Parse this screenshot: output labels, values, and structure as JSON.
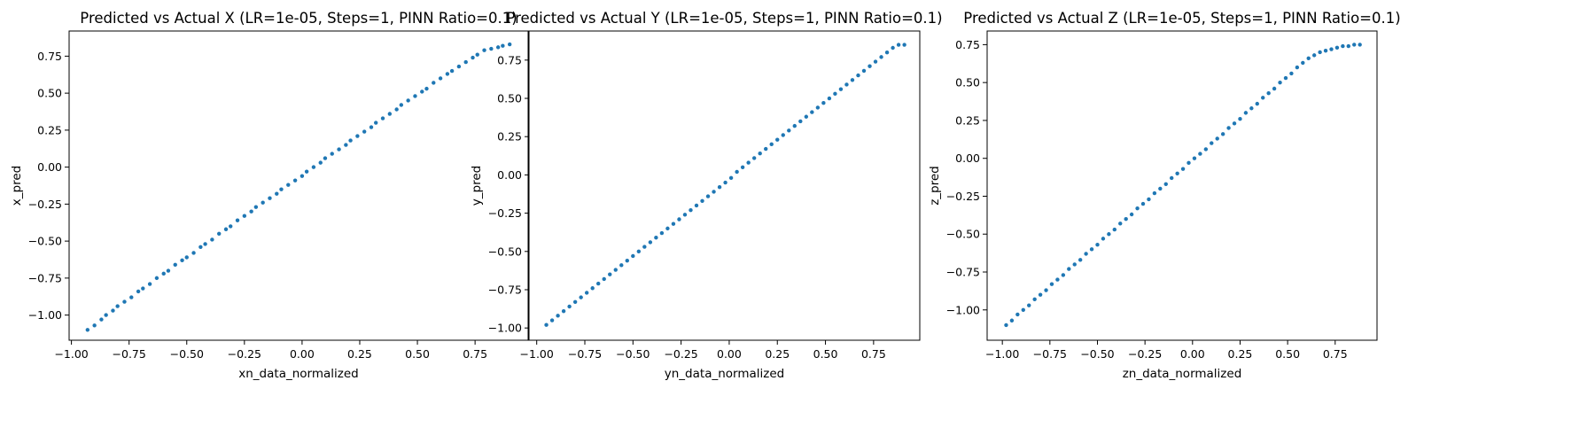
{
  "colors": {
    "points": "#1f77b4",
    "frame": "#000000",
    "background": "#ffffff"
  },
  "chart_data": [
    {
      "type": "scatter",
      "title": "Predicted vs Actual X (LR=1e-05, Steps=1, PINN Ratio=0.1)",
      "xlabel": "xn_data_normalized",
      "ylabel": "x_pred",
      "xlim": [
        -1.01,
        0.98
      ],
      "ylim": [
        -1.17,
        0.92
      ],
      "xticks": [
        -1.0,
        -0.75,
        -0.5,
        -0.25,
        0.0,
        0.25,
        0.5,
        0.75
      ],
      "xtick_labels": [
        "−1.00",
        "−0.75",
        "−0.50",
        "−0.25",
        "0.00",
        "0.25",
        "0.50",
        "0.75"
      ],
      "yticks": [
        -1.0,
        -0.75,
        -0.5,
        -0.25,
        0.0,
        0.25,
        0.5,
        0.75
      ],
      "ytick_labels": [
        "−1.00",
        "−0.75",
        "−0.50",
        "−0.25",
        "0.00",
        "0.25",
        "0.50",
        "0.75"
      ],
      "grid": false,
      "x": [
        -0.93,
        -0.9,
        -0.87,
        -0.85,
        -0.82,
        -0.8,
        -0.77,
        -0.74,
        -0.71,
        -0.69,
        -0.66,
        -0.63,
        -0.6,
        -0.58,
        -0.55,
        -0.52,
        -0.5,
        -0.47,
        -0.44,
        -0.42,
        -0.39,
        -0.36,
        -0.33,
        -0.31,
        -0.28,
        -0.25,
        -0.22,
        -0.2,
        -0.17,
        -0.14,
        -0.11,
        -0.09,
        -0.06,
        -0.03,
        0.0,
        0.02,
        0.05,
        0.08,
        0.1,
        0.13,
        0.16,
        0.19,
        0.21,
        0.24,
        0.27,
        0.3,
        0.32,
        0.35,
        0.38,
        0.41,
        0.43,
        0.46,
        0.49,
        0.52,
        0.54,
        0.57,
        0.6,
        0.63,
        0.65,
        0.68,
        0.71,
        0.74,
        0.76,
        0.79,
        0.82,
        0.85,
        0.87,
        0.9
      ],
      "y": [
        -1.1,
        -1.07,
        -1.03,
        -1.0,
        -0.97,
        -0.94,
        -0.91,
        -0.88,
        -0.84,
        -0.82,
        -0.79,
        -0.75,
        -0.72,
        -0.7,
        -0.66,
        -0.63,
        -0.61,
        -0.58,
        -0.54,
        -0.52,
        -0.49,
        -0.45,
        -0.42,
        -0.4,
        -0.36,
        -0.33,
        -0.3,
        -0.27,
        -0.24,
        -0.21,
        -0.18,
        -0.15,
        -0.12,
        -0.09,
        -0.06,
        -0.03,
        0.0,
        0.03,
        0.06,
        0.09,
        0.12,
        0.15,
        0.18,
        0.21,
        0.24,
        0.27,
        0.3,
        0.33,
        0.36,
        0.39,
        0.42,
        0.45,
        0.48,
        0.51,
        0.53,
        0.57,
        0.6,
        0.63,
        0.65,
        0.68,
        0.71,
        0.74,
        0.76,
        0.79,
        0.8,
        0.81,
        0.82,
        0.83
      ]
    },
    {
      "type": "scatter",
      "title": "Predicted vs Actual Y (LR=1e-05, Steps=1, PINN Ratio=0.1)",
      "xlabel": "yn_data_normalized",
      "ylabel": "y_pred",
      "xlim": [
        -1.04,
        0.99
      ],
      "ylim": [
        -1.08,
        0.94
      ],
      "xticks": [
        -1.0,
        -0.75,
        -0.5,
        -0.25,
        0.0,
        0.25,
        0.5,
        0.75
      ],
      "xtick_labels": [
        "−1.00",
        "−0.75",
        "−0.50",
        "−0.25",
        "0.00",
        "0.25",
        "0.50",
        "0.75"
      ],
      "yticks": [
        -1.0,
        -0.75,
        -0.5,
        -0.25,
        0.0,
        0.25,
        0.5,
        0.75
      ],
      "ytick_labels": [
        "−1.00",
        "−0.75",
        "−0.50",
        "−0.25",
        "0.00",
        "0.25",
        "0.50",
        "0.75"
      ],
      "grid": false,
      "x": [
        -0.95,
        -0.92,
        -0.89,
        -0.86,
        -0.83,
        -0.8,
        -0.77,
        -0.74,
        -0.71,
        -0.68,
        -0.65,
        -0.62,
        -0.59,
        -0.56,
        -0.53,
        -0.5,
        -0.47,
        -0.44,
        -0.41,
        -0.38,
        -0.35,
        -0.32,
        -0.29,
        -0.26,
        -0.23,
        -0.2,
        -0.17,
        -0.14,
        -0.11,
        -0.08,
        -0.05,
        -0.02,
        0.01,
        0.04,
        0.07,
        0.1,
        0.13,
        0.16,
        0.19,
        0.22,
        0.25,
        0.28,
        0.31,
        0.34,
        0.37,
        0.4,
        0.43,
        0.46,
        0.49,
        0.52,
        0.55,
        0.58,
        0.61,
        0.64,
        0.67,
        0.7,
        0.73,
        0.76,
        0.79,
        0.82,
        0.85,
        0.88,
        0.91
      ],
      "y": [
        -0.98,
        -0.95,
        -0.92,
        -0.89,
        -0.86,
        -0.83,
        -0.8,
        -0.77,
        -0.74,
        -0.71,
        -0.68,
        -0.65,
        -0.62,
        -0.59,
        -0.56,
        -0.53,
        -0.5,
        -0.47,
        -0.44,
        -0.41,
        -0.38,
        -0.35,
        -0.32,
        -0.29,
        -0.26,
        -0.23,
        -0.2,
        -0.17,
        -0.14,
        -0.11,
        -0.08,
        -0.05,
        -0.02,
        0.02,
        0.05,
        0.08,
        0.11,
        0.14,
        0.17,
        0.2,
        0.23,
        0.26,
        0.29,
        0.32,
        0.35,
        0.38,
        0.41,
        0.44,
        0.47,
        0.5,
        0.53,
        0.56,
        0.59,
        0.62,
        0.65,
        0.68,
        0.71,
        0.74,
        0.77,
        0.8,
        0.83,
        0.85,
        0.85
      ]
    },
    {
      "type": "scatter",
      "title": "Predicted vs Actual Z (LR=1e-05, Steps=1, PINN Ratio=0.1)",
      "xlabel": "zn_data_normalized",
      "ylabel": "z_pred",
      "xlim": [
        -1.08,
        0.97
      ],
      "ylim": [
        -1.2,
        0.84
      ],
      "xticks": [
        -1.0,
        -0.75,
        -0.5,
        -0.25,
        0.0,
        0.25,
        0.5,
        0.75
      ],
      "xtick_labels": [
        "−1.00",
        "−0.75",
        "−0.50",
        "−0.25",
        "0.00",
        "0.25",
        "0.50",
        "0.75"
      ],
      "yticks": [
        -1.0,
        -0.75,
        -0.5,
        -0.25,
        0.0,
        0.25,
        0.5,
        0.75
      ],
      "ytick_labels": [
        "−1.00",
        "−0.75",
        "−0.50",
        "−0.25",
        "0.00",
        "0.25",
        "0.50",
        "0.75"
      ],
      "grid": false,
      "x": [
        -0.98,
        -0.95,
        -0.92,
        -0.89,
        -0.86,
        -0.83,
        -0.8,
        -0.77,
        -0.74,
        -0.71,
        -0.68,
        -0.65,
        -0.62,
        -0.59,
        -0.56,
        -0.53,
        -0.5,
        -0.47,
        -0.44,
        -0.41,
        -0.38,
        -0.35,
        -0.32,
        -0.29,
        -0.26,
        -0.23,
        -0.2,
        -0.17,
        -0.14,
        -0.11,
        -0.08,
        -0.05,
        -0.02,
        0.01,
        0.04,
        0.07,
        0.1,
        0.13,
        0.16,
        0.19,
        0.22,
        0.25,
        0.28,
        0.31,
        0.34,
        0.37,
        0.4,
        0.43,
        0.46,
        0.49,
        0.52,
        0.55,
        0.58,
        0.61,
        0.64,
        0.67,
        0.7,
        0.73,
        0.76,
        0.79,
        0.82,
        0.85,
        0.88
      ],
      "y": [
        -1.1,
        -1.07,
        -1.03,
        -1.0,
        -0.97,
        -0.93,
        -0.9,
        -0.87,
        -0.83,
        -0.8,
        -0.77,
        -0.73,
        -0.7,
        -0.67,
        -0.63,
        -0.6,
        -0.57,
        -0.53,
        -0.5,
        -0.47,
        -0.43,
        -0.4,
        -0.37,
        -0.33,
        -0.3,
        -0.27,
        -0.23,
        -0.2,
        -0.17,
        -0.13,
        -0.1,
        -0.07,
        -0.03,
        0.0,
        0.03,
        0.06,
        0.1,
        0.13,
        0.16,
        0.2,
        0.23,
        0.26,
        0.3,
        0.33,
        0.36,
        0.4,
        0.43,
        0.46,
        0.5,
        0.53,
        0.56,
        0.6,
        0.63,
        0.66,
        0.68,
        0.7,
        0.71,
        0.72,
        0.73,
        0.74,
        0.74,
        0.75,
        0.75
      ]
    }
  ]
}
